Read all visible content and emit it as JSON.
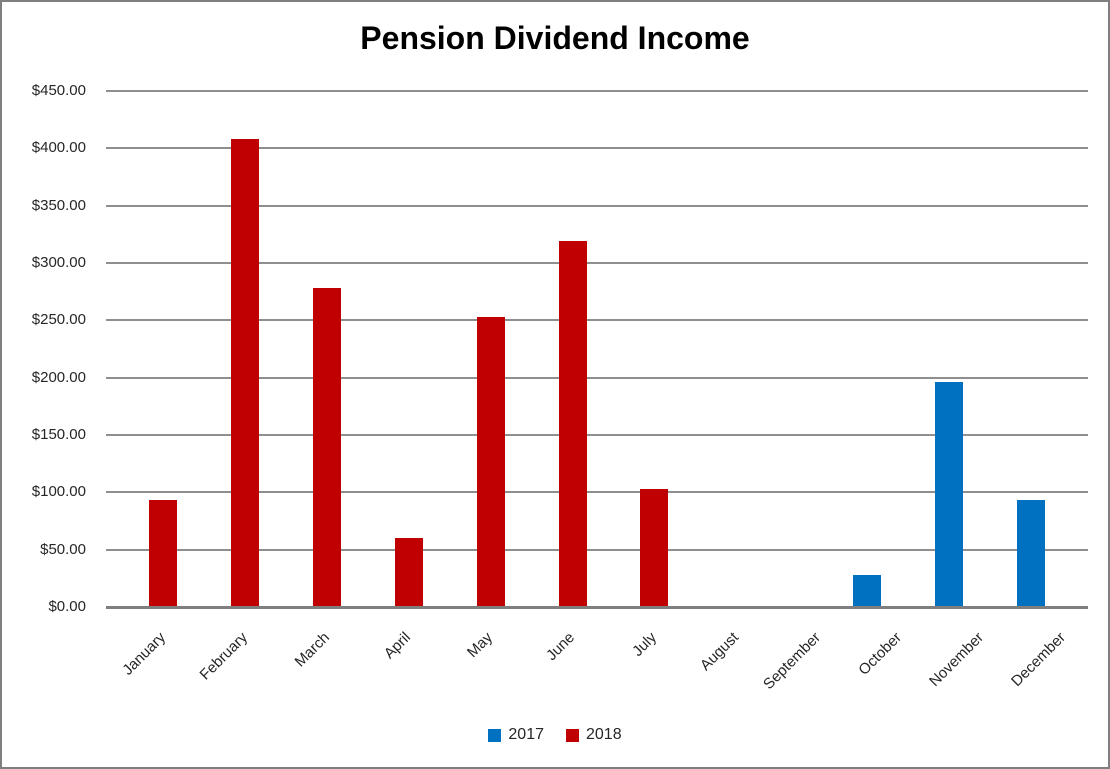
{
  "chart_data": {
    "type": "bar",
    "title": "Pension Dividend Income",
    "categories": [
      "January",
      "February",
      "March",
      "April",
      "May",
      "June",
      "July",
      "August",
      "September",
      "October",
      "November",
      "December"
    ],
    "series": [
      {
        "name": "2017",
        "color": "#0070C0",
        "values": [
          0,
          0,
          0,
          0,
          0,
          0,
          0,
          0,
          0,
          28,
          196,
          93
        ]
      },
      {
        "name": "2018",
        "color": "#C00000",
        "values": [
          93,
          408,
          278,
          60,
          253,
          319,
          103,
          0,
          0,
          0,
          0,
          0
        ]
      }
    ],
    "xlabel": "",
    "ylabel": "",
    "ylim": [
      0,
      450
    ],
    "ytick_step": 50,
    "ytick_labels": [
      "$0.00",
      "$50.00",
      "$100.00",
      "$150.00",
      "$200.00",
      "$250.00",
      "$300.00",
      "$350.00",
      "$400.00",
      "$450.00"
    ],
    "grid": true,
    "gridline_color": "#8f8f8f",
    "axis_line_color": "#7f7f7f",
    "legend_position": "bottom"
  }
}
